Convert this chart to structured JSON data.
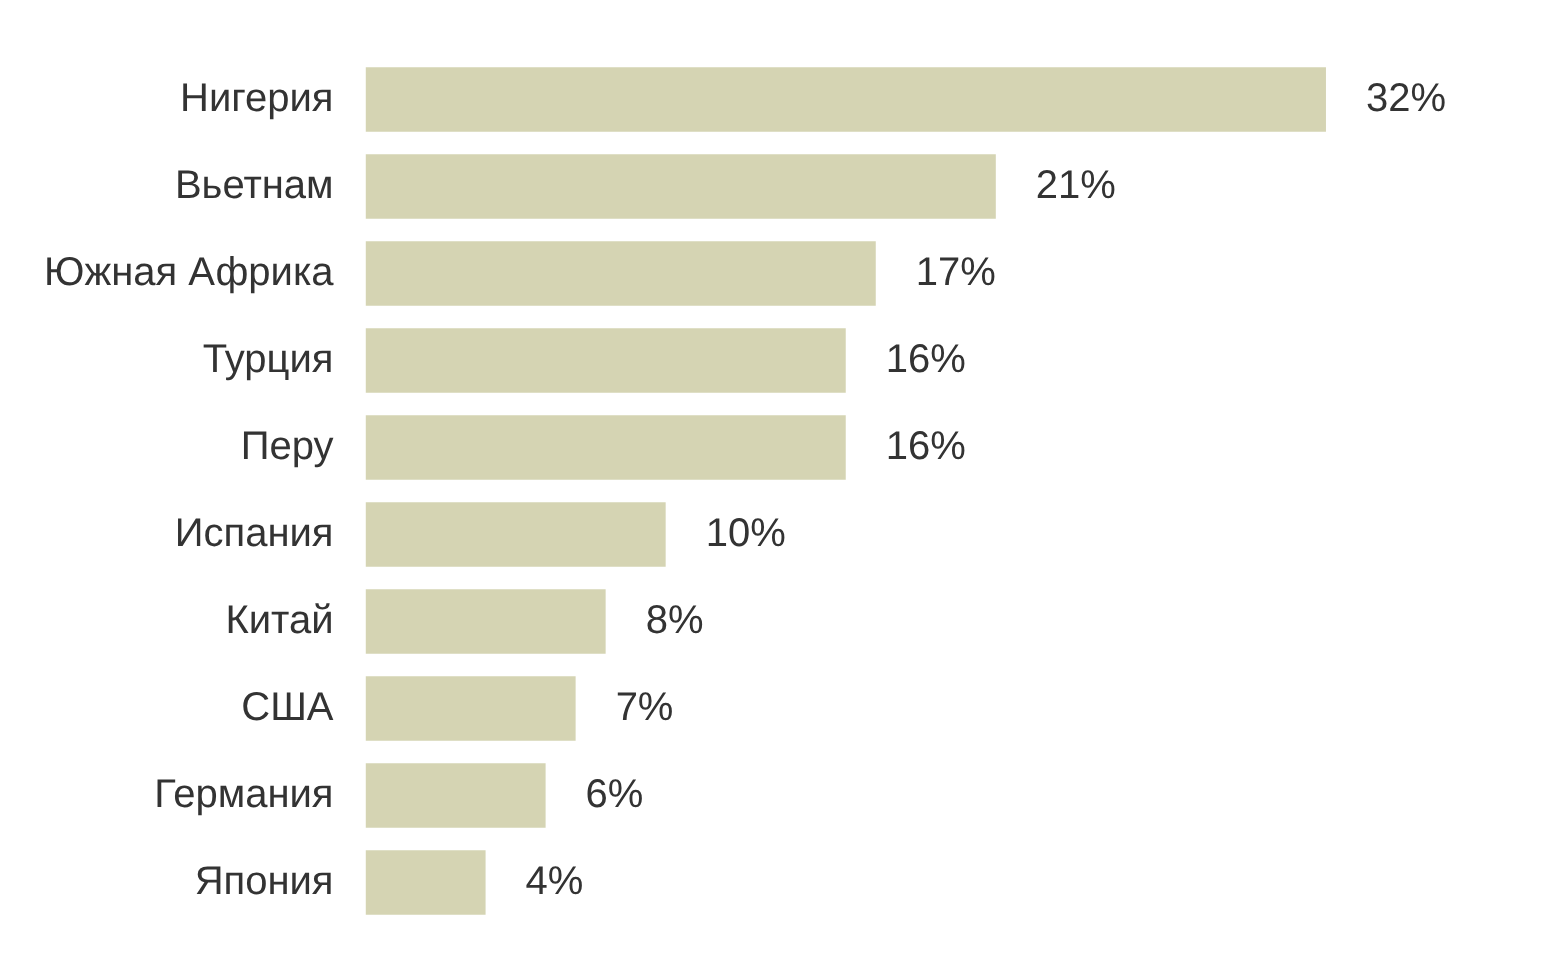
{
  "chart_data": {
    "type": "bar",
    "orientation": "horizontal",
    "categories": [
      "Нигерия",
      "Вьетнам",
      "Южная Африка",
      "Турция",
      "Перу",
      "Испания",
      "Китай",
      "США",
      "Германия",
      "Япония"
    ],
    "values": [
      32,
      21,
      17,
      16,
      16,
      10,
      8,
      7,
      6,
      4
    ],
    "value_labels": [
      "32%",
      "21%",
      "17%",
      "16%",
      "16%",
      "10%",
      "8%",
      "7%",
      "6%",
      "4%"
    ],
    "color": "#d5d4b3"
  }
}
